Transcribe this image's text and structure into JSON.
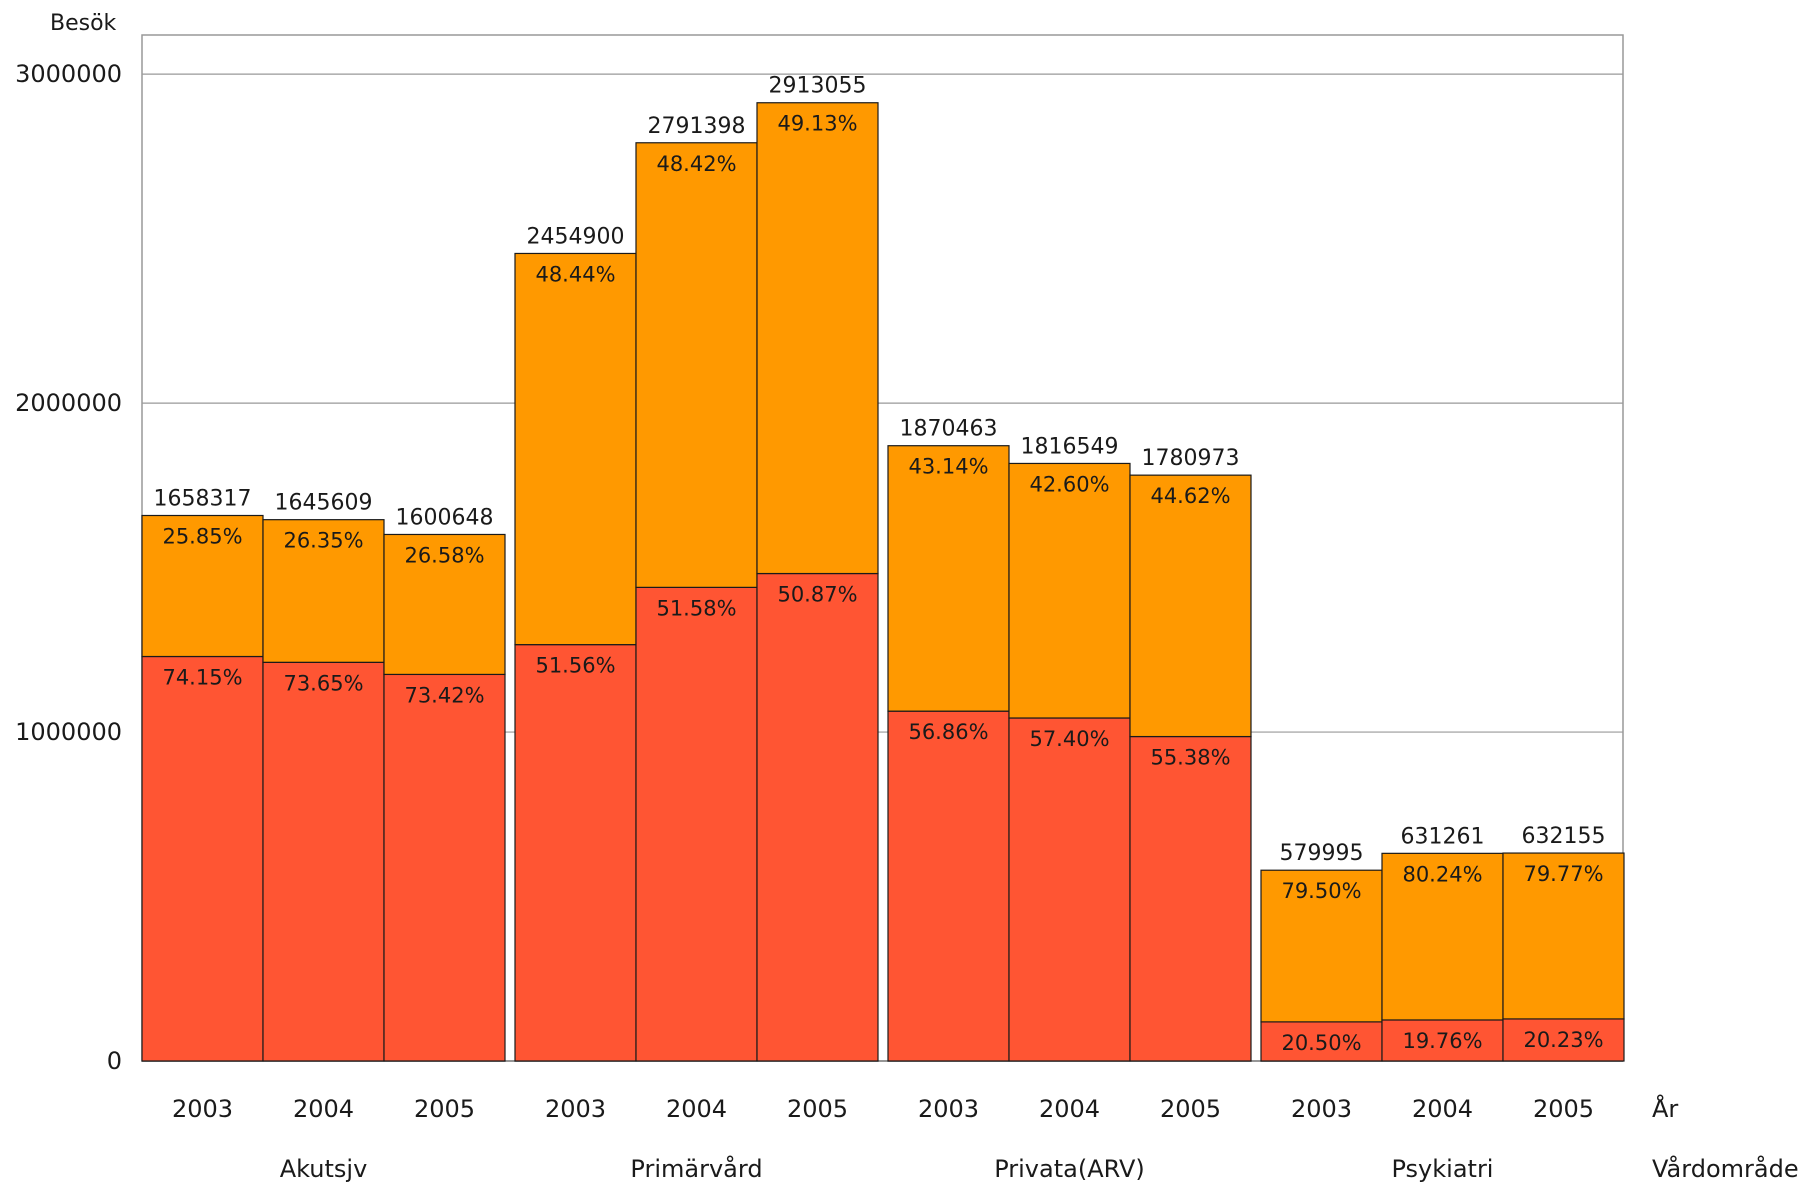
{
  "chart_data": {
    "type": "bar",
    "stacked": true,
    "ylabel": "Besök",
    "x_axis_year_title": "År",
    "x_axis_group_title": "Vårdområde",
    "ylim": [
      0,
      3000000
    ],
    "yticks": [
      "0",
      "1000000",
      "2000000",
      "3000000"
    ],
    "grid": true,
    "colors": {
      "bottom_segment": "#ff5533",
      "top_segment": "#ff9900",
      "outline": "#1a1a1a",
      "grid": "#999999"
    },
    "groups": [
      {
        "name": "Akutsjv",
        "bars": [
          {
            "year": "2003",
            "total": 1658317,
            "total_label": "1658317",
            "bottom_pct": "74.15%",
            "top_pct": "25.85%"
          },
          {
            "year": "2004",
            "total": 1645609,
            "total_label": "1645609",
            "bottom_pct": "73.65%",
            "top_pct": "26.35%"
          },
          {
            "year": "2005",
            "total": 1600648,
            "total_label": "1600648",
            "bottom_pct": "73.42%",
            "top_pct": "26.58%"
          }
        ]
      },
      {
        "name": "Primärvård",
        "bars": [
          {
            "year": "2003",
            "total": 2454900,
            "total_label": "2454900",
            "bottom_pct": "51.56%",
            "top_pct": "48.44%"
          },
          {
            "year": "2004",
            "total": 2791398,
            "total_label": "2791398",
            "bottom_pct": "51.58%",
            "top_pct": "48.42%"
          },
          {
            "year": "2005",
            "total": 2913055,
            "total_label": "2913055",
            "bottom_pct": "50.87%",
            "top_pct": "49.13%"
          }
        ]
      },
      {
        "name": "Privata(ARV)",
        "bars": [
          {
            "year": "2003",
            "total": 1870463,
            "total_label": "1870463",
            "bottom_pct": "56.86%",
            "top_pct": "43.14%"
          },
          {
            "year": "2004",
            "total": 1816549,
            "total_label": "1816549",
            "bottom_pct": "57.40%",
            "top_pct": "42.60%"
          },
          {
            "year": "2005",
            "total": 1780973,
            "total_label": "1780973",
            "bottom_pct": "55.38%",
            "top_pct": "44.62%"
          }
        ]
      },
      {
        "name": "Psykiatri",
        "bars": [
          {
            "year": "2003",
            "total": 579995,
            "total_label": "579995",
            "bottom_pct": "20.50%",
            "top_pct": "79.50%"
          },
          {
            "year": "2004",
            "total": 631261,
            "total_label": "631261",
            "bottom_pct": "19.76%",
            "top_pct": "80.24%"
          },
          {
            "year": "2005",
            "total": 632155,
            "total_label": "632155",
            "bottom_pct": "20.23%",
            "top_pct": "79.77%"
          }
        ]
      }
    ]
  }
}
